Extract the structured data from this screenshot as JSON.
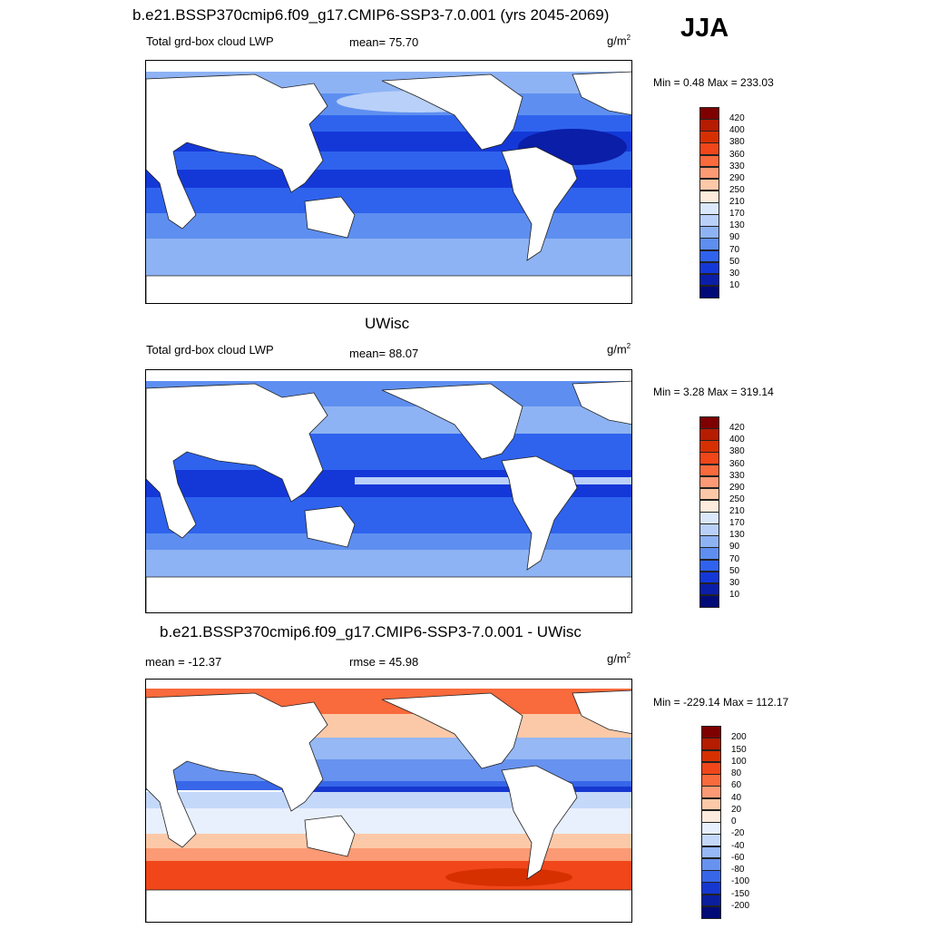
{
  "season": "JJA",
  "panel_1": {
    "title": "b.e21.BSSP370cmip6.f09_g17.CMIP6-SSP3-7.0.001 (yrs 2045-2069)",
    "left_label": "Total grd-box cloud LWP",
    "center_label": "mean=  75.70",
    "unit": "g/m",
    "unit_sup": "2",
    "min_max": "Min =   0.48 Max = 233.03",
    "colorbar": {
      "labels": [
        "420",
        "400",
        "380",
        "360",
        "330",
        "290",
        "250",
        "210",
        "170",
        "130",
        "90",
        "70",
        "50",
        "30",
        "10"
      ],
      "colors": [
        "#7f0000",
        "#b51c00",
        "#d73000",
        "#f0461a",
        "#f96a3c",
        "#fb9a74",
        "#fcc9a8",
        "#fdebdd",
        "#dbe8fb",
        "#b9d0f9",
        "#8eb3f4",
        "#5e8ff0",
        "#2f63ee",
        "#1438d8",
        "#0a1ea8",
        "#010b78"
      ]
    }
  },
  "panel_2": {
    "title": "UWisc",
    "left_label": "Total grd-box cloud LWP",
    "center_label": "mean=  88.07",
    "unit": "g/m",
    "unit_sup": "2",
    "min_max": "Min =   3.28 Max = 319.14",
    "colorbar": {
      "labels": [
        "420",
        "400",
        "380",
        "360",
        "330",
        "290",
        "250",
        "210",
        "170",
        "130",
        "90",
        "70",
        "50",
        "30",
        "10"
      ],
      "colors": [
        "#7f0000",
        "#b51c00",
        "#d73000",
        "#f0461a",
        "#f96a3c",
        "#fb9a74",
        "#fcc9a8",
        "#fdebdd",
        "#dbe8fb",
        "#b9d0f9",
        "#8eb3f4",
        "#5e8ff0",
        "#2f63ee",
        "#1438d8",
        "#0a1ea8",
        "#010b78"
      ]
    }
  },
  "panel_3": {
    "title": "b.e21.BSSP370cmip6.f09_g17.CMIP6-SSP3-7.0.001 - UWisc",
    "left_label": "mean = -12.37",
    "center_label": "rmse =  45.98",
    "unit": "g/m",
    "unit_sup": "2",
    "min_max": "Min = -229.14 Max = 112.17",
    "colorbar": {
      "labels": [
        "200",
        "150",
        "100",
        "80",
        "60",
        "40",
        "20",
        "0",
        "-20",
        "-40",
        "-60",
        "-80",
        "-100",
        "-150",
        "-200"
      ],
      "colors": [
        "#7f0000",
        "#b51c00",
        "#d73000",
        "#f0461a",
        "#f96a3c",
        "#fb9a74",
        "#fcc9a8",
        "#fdebdd",
        "#e8f0fd",
        "#c4d8fa",
        "#96b8f4",
        "#6792ef",
        "#3766e8",
        "#1638d0",
        "#0a1ea0",
        "#010b78"
      ]
    }
  }
}
